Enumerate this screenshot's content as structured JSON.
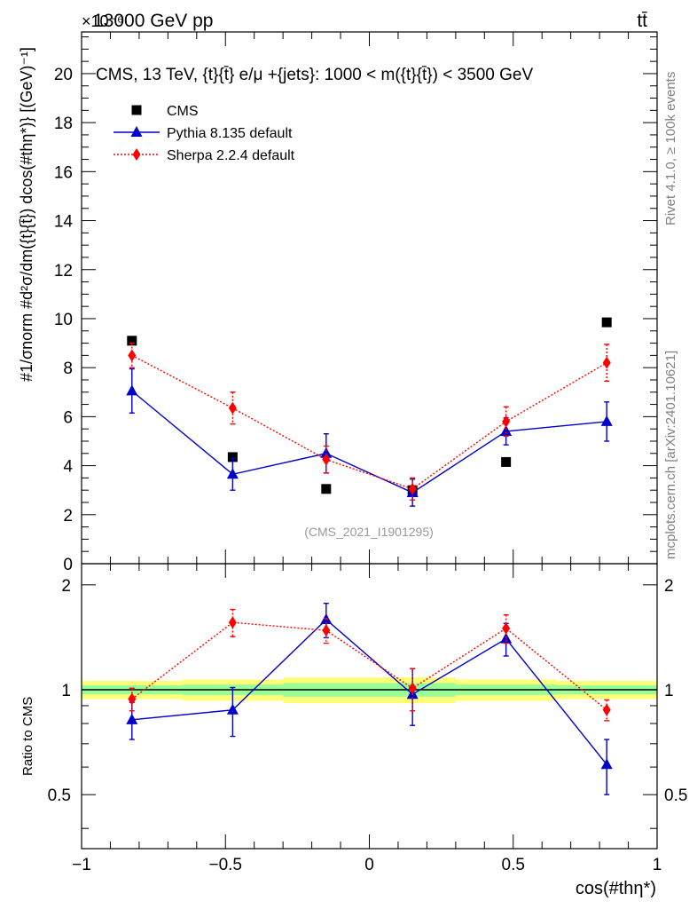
{
  "header": {
    "energy_label": "13000 GeV pp",
    "process_label": "tt̄",
    "exponent_label": "×10⁻⁶",
    "side_rivet": "Rivet 4.1.0, ≥ 100k events",
    "side_mcplots": "mcplots.cern.ch [arXiv:2401.10621]",
    "analysis_id": "(CMS_2021_I1901295)"
  },
  "colors": {
    "data": "#000000",
    "pythia": "#0000cc",
    "sherpa": "#ff0000",
    "band_inner": "#99ff99",
    "band_outer": "#ffff77"
  },
  "chart_data": [
    {
      "type": "line",
      "title": "CMS, 13 TeV, {t}{t̄} e/μ +{jets}: 1000 < m({t}{t̄}) < 3500 GeV",
      "xlabel": "cos(#thη*)",
      "ylabel": "#1/σnorm #d²σ/dm({t}{t̄}) dcos(#thη*)} [(GeV)⁻¹]",
      "y_scale_label": "×10⁻⁶",
      "xlim": [
        -1,
        1
      ],
      "ylim": [
        0,
        21.7
      ],
      "yticks": [
        0,
        2,
        4,
        6,
        8,
        10,
        12,
        14,
        16,
        18,
        20
      ],
      "x": [
        -0.825,
        -0.475,
        -0.15,
        0.15,
        0.475,
        0.825
      ],
      "legend": {
        "placement": "top-left",
        "entries": [
          "CMS",
          "Pythia 8.135 default",
          "Sherpa 2.2.4 default"
        ]
      },
      "series": [
        {
          "name": "CMS",
          "marker": "square",
          "values": [
            9.1,
            4.35,
            3.05,
            3.0,
            4.15,
            9.85
          ],
          "err": [
            0,
            0,
            0,
            0,
            0,
            0
          ]
        },
        {
          "name": "Pythia 8.135 default",
          "marker": "triangle",
          "values": [
            7.05,
            3.65,
            4.5,
            2.9,
            5.4,
            5.8
          ],
          "err": [
            0.9,
            0.65,
            0.8,
            0.55,
            0.55,
            0.8
          ]
        },
        {
          "name": "Sherpa 2.2.4 default",
          "marker": "diamond",
          "values": [
            8.5,
            6.35,
            4.25,
            3.05,
            5.8,
            8.2
          ],
          "err": [
            0.5,
            0.65,
            0.55,
            0.45,
            0.6,
            0.75
          ]
        }
      ]
    },
    {
      "type": "line",
      "title": "",
      "xlabel": "cos(#thη*)",
      "ylabel": "Ratio to CMS",
      "xlim": [
        -1,
        1
      ],
      "ylim": [
        0.35,
        2.3
      ],
      "yticks": [
        0.5,
        1,
        2
      ],
      "xticks": [
        -1,
        -0.5,
        0,
        0.5,
        1
      ],
      "xtick_labels": [
        "−1",
        "−0.5",
        "0",
        "0.5",
        "1"
      ],
      "x": [
        -0.825,
        -0.475,
        -0.15,
        0.15,
        0.475,
        0.825
      ],
      "bins": [
        -1,
        -0.65,
        -0.3,
        0,
        0.3,
        0.65,
        1
      ],
      "band_inner": [
        0.03,
        0.035,
        0.045,
        0.045,
        0.035,
        0.03
      ],
      "band_outer": [
        0.06,
        0.07,
        0.085,
        0.085,
        0.07,
        0.06
      ],
      "series": [
        {
          "name": "Pythia 8.135 default",
          "marker": "triangle",
          "values": [
            0.82,
            0.875,
            1.59,
            0.97,
            1.4,
            0.61
          ],
          "err": [
            0.1,
            0.14,
            0.18,
            0.18,
            0.15,
            0.11
          ]
        },
        {
          "name": "Sherpa 2.2.4 default",
          "marker": "diamond",
          "values": [
            0.94,
            1.56,
            1.48,
            1.01,
            1.5,
            0.875
          ],
          "err": [
            0.07,
            0.14,
            0.12,
            0.14,
            0.14,
            0.06
          ]
        }
      ]
    }
  ]
}
